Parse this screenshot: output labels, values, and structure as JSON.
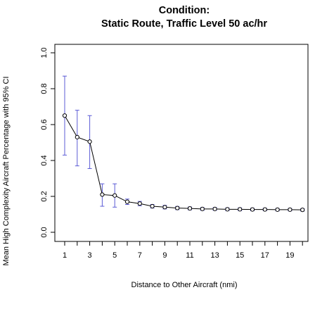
{
  "chart_data": {
    "type": "line",
    "title_line1": "Condition:",
    "title_line2": "Static Route, Traffic Level 50 ac/hr",
    "xlabel": "Distance to Other Aircraft (nmi)",
    "ylabel": "Mean High Complexity Aircraft Percentage with 95% CI",
    "xlim": [
      0,
      20
    ],
    "ylim": [
      0.0,
      1.0
    ],
    "x_ticks": [
      1,
      3,
      5,
      7,
      9,
      11,
      13,
      15,
      17,
      19
    ],
    "y_ticks": [
      0.0,
      0.2,
      0.4,
      0.6,
      0.8,
      1.0
    ],
    "y_tick_labels": [
      "0.0",
      "0.2",
      "0.4",
      "0.6",
      "0.8",
      "1.0"
    ],
    "x": [
      1,
      2,
      3,
      4,
      5,
      6,
      7,
      8,
      9,
      10,
      11,
      12,
      13,
      14,
      15,
      16,
      17,
      18,
      19,
      20
    ],
    "mean": [
      0.65,
      0.53,
      0.505,
      0.21,
      0.205,
      0.17,
      0.16,
      0.145,
      0.14,
      0.135,
      0.133,
      0.13,
      0.13,
      0.128,
      0.128,
      0.127,
      0.127,
      0.126,
      0.126,
      0.125
    ],
    "ci_lower": [
      0.43,
      0.37,
      0.355,
      0.145,
      0.14,
      0.155,
      0.148,
      0.135,
      0.13,
      0.126,
      0.125,
      0.122,
      0.122,
      0.12,
      0.12,
      0.12,
      0.12,
      0.119,
      0.119,
      0.118
    ],
    "ci_upper": [
      0.87,
      0.68,
      0.65,
      0.27,
      0.27,
      0.185,
      0.172,
      0.155,
      0.15,
      0.144,
      0.141,
      0.138,
      0.138,
      0.136,
      0.136,
      0.134,
      0.134,
      0.133,
      0.133,
      0.132
    ],
    "line_color": "#000000",
    "ci_color": "#5b5bd6",
    "grid": false
  }
}
